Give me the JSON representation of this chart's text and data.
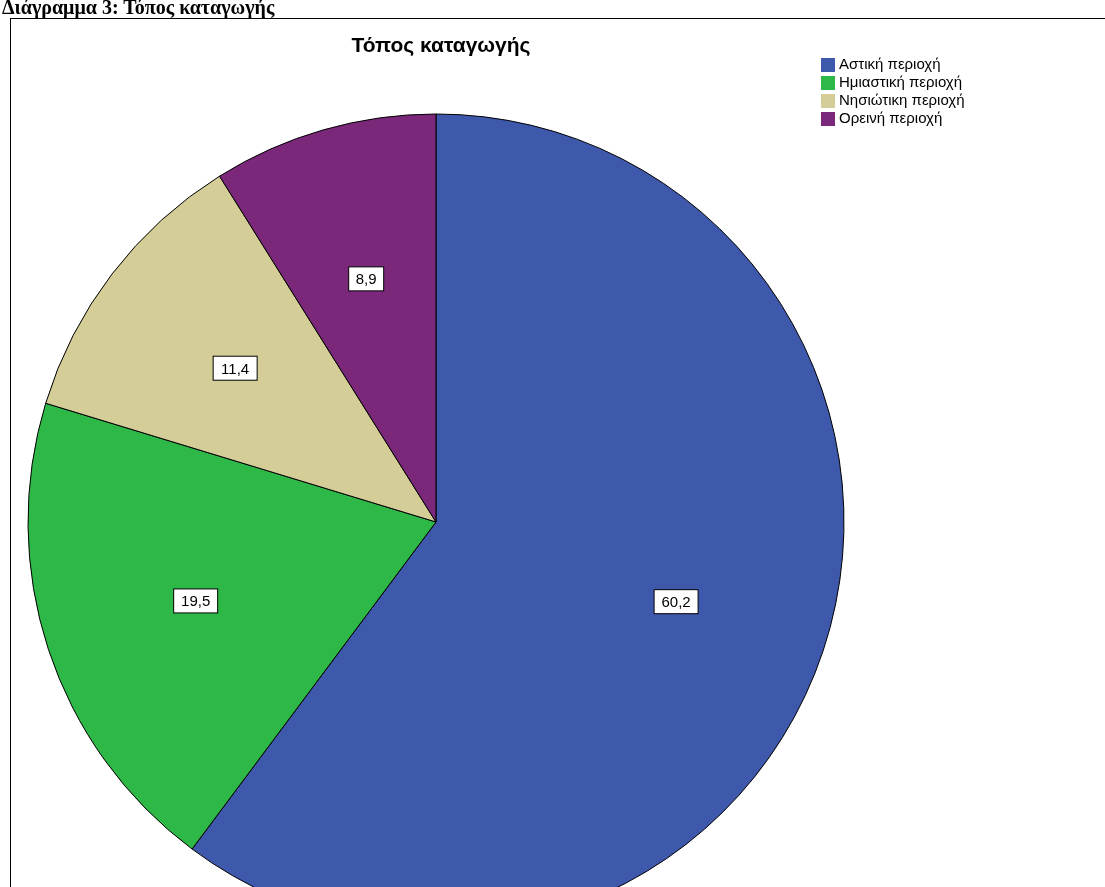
{
  "chart_data": {
    "type": "pie",
    "title": "Τόπος καταγωγής",
    "categories": [
      "Αστική περιοχή",
      "Ημιαστική περιοχή",
      "Νησιώτικη περιοχή",
      "Ορεινή περιοχή"
    ],
    "values": [
      60.2,
      19.5,
      11.4,
      8.9
    ],
    "colors": [
      "#3e58ac",
      "#2eb848",
      "#d4cd98",
      "#7b287b"
    ],
    "value_labels": [
      "60,2",
      "19,5",
      "11,4",
      "8,9"
    ],
    "legend": "top right",
    "annotations": [
      "Διάγραμμα 3: Τόπος καταγωγής"
    ]
  }
}
